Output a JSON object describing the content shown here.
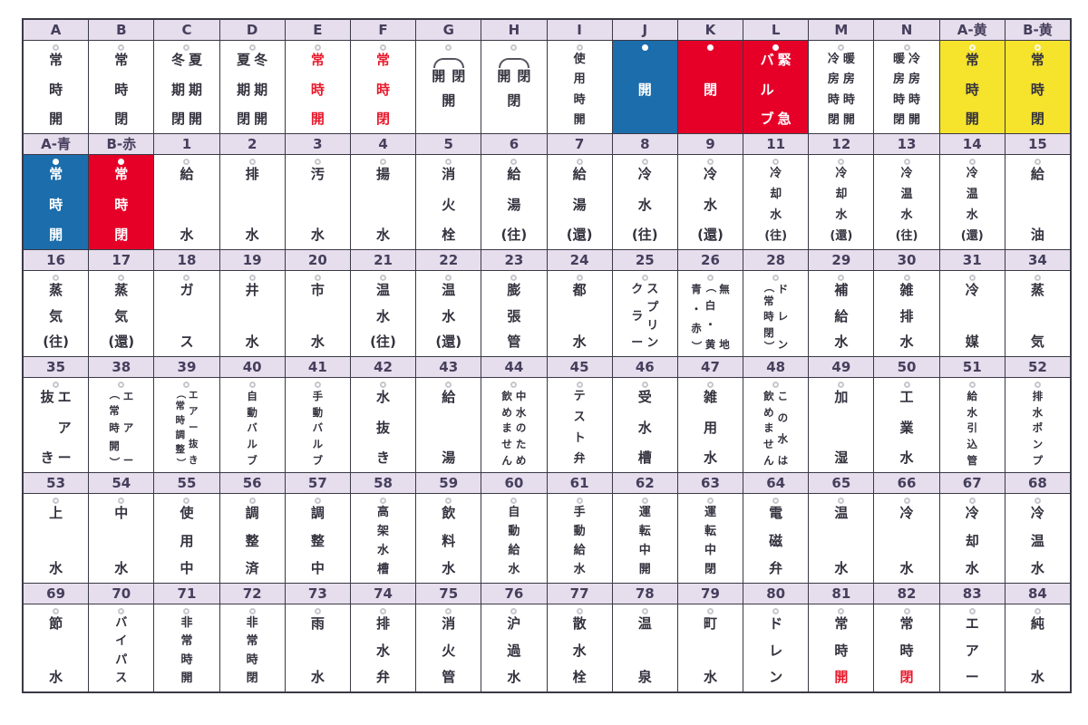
{
  "title": "valve-tag-chart",
  "colors": {
    "header_bg": "#e6dded",
    "header_text": "#463f5c",
    "border": "#3a3946",
    "tag_text": "#33323e",
    "blue_tag": "#1b6dab",
    "red_tag": "#e60028",
    "yellow_tag": "#f6e32c",
    "red_text": "#e8192c",
    "white": "#ffffff"
  },
  "table": {
    "columns": 16,
    "rows": [
      {
        "kind": "header",
        "cells": [
          "A",
          "B",
          "C",
          "D",
          "E",
          "F",
          "G",
          "H",
          "I",
          "J",
          "K",
          "L",
          "M",
          "N",
          "A-黄",
          "B-黄"
        ]
      },
      {
        "kind": "tags",
        "cells": [
          {
            "lines": [
              "常時開"
            ]
          },
          {
            "lines": [
              "常時閉"
            ]
          },
          {
            "lines": [
              "夏期開",
              "冬期閉"
            ]
          },
          {
            "lines": [
              "冬期開",
              "夏期閉"
            ]
          },
          {
            "lines": [
              "常時開"
            ],
            "fg": "red"
          },
          {
            "lines": [
              "常時閉"
            ],
            "fg": "red"
          },
          {
            "arc": {
              "pair": "開閉",
              "below": "開"
            }
          },
          {
            "arc": {
              "pair": "開閉",
              "below": "閉"
            }
          },
          {
            "lines": [
              "使用時開"
            ]
          },
          {
            "lines": [
              "開"
            ],
            "bg": "blue"
          },
          {
            "lines": [
              "閉"
            ],
            "bg": "red"
          },
          {
            "lines": [
              "緊急",
              "バルブ"
            ],
            "bg": "red"
          },
          {
            "lines": [
              "暖房時開",
              "冷房時閉"
            ]
          },
          {
            "lines": [
              "冷房時開",
              "暖房時閉"
            ]
          },
          {
            "lines": [
              "常時開"
            ],
            "bg": "yellow"
          },
          {
            "lines": [
              "常時閉"
            ],
            "bg": "yellow"
          }
        ]
      },
      {
        "kind": "header",
        "cells": [
          "A-青",
          "B-赤",
          "1",
          "2",
          "3",
          "4",
          "5",
          "6",
          "7",
          "8",
          "9",
          "11",
          "12",
          "13",
          "14",
          "15"
        ]
      },
      {
        "kind": "tags",
        "cells": [
          {
            "lines": [
              "常時開"
            ],
            "bg": "blue"
          },
          {
            "lines": [
              "常時閉"
            ],
            "bg": "red"
          },
          {
            "lines": [
              "給水"
            ]
          },
          {
            "lines": [
              "排水"
            ]
          },
          {
            "lines": [
              "汚水"
            ]
          },
          {
            "lines": [
              "揚水"
            ]
          },
          {
            "lines": [
              "消火栓"
            ]
          },
          {
            "lines": [
              "給湯(往)"
            ]
          },
          {
            "lines": [
              "給湯(還)"
            ]
          },
          {
            "lines": [
              "冷水(往)"
            ]
          },
          {
            "lines": [
              "冷水(還)"
            ]
          },
          {
            "lines": [
              "冷却水(往)"
            ]
          },
          {
            "lines": [
              "冷却水(還)"
            ]
          },
          {
            "lines": [
              "冷温水(往)"
            ]
          },
          {
            "lines": [
              "冷温水(還)"
            ]
          },
          {
            "lines": [
              "給油"
            ]
          }
        ]
      },
      {
        "kind": "header",
        "cells": [
          "16",
          "17",
          "18",
          "19",
          "20",
          "21",
          "22",
          "23",
          "24",
          "25",
          "26",
          "28",
          "29",
          "30",
          "31",
          "34"
        ]
      },
      {
        "kind": "tags",
        "cells": [
          {
            "lines": [
              "蒸気(往)"
            ]
          },
          {
            "lines": [
              "蒸気(還)"
            ]
          },
          {
            "lines": [
              "ガス"
            ]
          },
          {
            "lines": [
              "井水"
            ]
          },
          {
            "lines": [
              "市水"
            ]
          },
          {
            "lines": [
              "温水(往)"
            ]
          },
          {
            "lines": [
              "温水(還)"
            ]
          },
          {
            "lines": [
              "膨張管"
            ]
          },
          {
            "lines": [
              "都水"
            ]
          },
          {
            "lines": [
              "スプリン",
              "クラー"
            ]
          },
          {
            "lines": [
              "無地",
              "（白・黄",
              "青・赤）"
            ]
          },
          {
            "lines": [
              "ドレン",
              "（常時閉）"
            ]
          },
          {
            "lines": [
              "補給水"
            ]
          },
          {
            "lines": [
              "雑排水"
            ]
          },
          {
            "lines": [
              "冷媒"
            ]
          },
          {
            "lines": [
              "蒸気"
            ]
          }
        ]
      },
      {
        "kind": "header",
        "cells": [
          "35",
          "38",
          "39",
          "40",
          "41",
          "42",
          "43",
          "44",
          "45",
          "46",
          "47",
          "48",
          "49",
          "50",
          "51",
          "52"
        ]
      },
      {
        "kind": "tags",
        "cells": [
          {
            "lines": [
              "エアー",
              "抜き"
            ]
          },
          {
            "lines": [
              "エアー",
              "（常時開）"
            ]
          },
          {
            "lines": [
              "エアー抜き",
              "（常時調整）"
            ]
          },
          {
            "lines": [
              "自動バルブ"
            ]
          },
          {
            "lines": [
              "手動バルブ"
            ]
          },
          {
            "lines": [
              "水抜き"
            ]
          },
          {
            "lines": [
              "給湯"
            ]
          },
          {
            "lines": [
              "中水のため",
              "飲めません"
            ]
          },
          {
            "lines": [
              "テスト弁"
            ]
          },
          {
            "lines": [
              "受水槽"
            ]
          },
          {
            "lines": [
              "雑用水"
            ]
          },
          {
            "lines": [
              "この水は",
              "飲めません"
            ]
          },
          {
            "lines": [
              "加湿"
            ]
          },
          {
            "lines": [
              "工業水"
            ]
          },
          {
            "lines": [
              "給水引込管"
            ]
          },
          {
            "lines": [
              "排水ポンプ"
            ]
          }
        ]
      },
      {
        "kind": "header",
        "cells": [
          "53",
          "54",
          "55",
          "56",
          "57",
          "58",
          "59",
          "60",
          "61",
          "62",
          "63",
          "64",
          "65",
          "66",
          "67",
          "68"
        ]
      },
      {
        "kind": "tags",
        "cells": [
          {
            "lines": [
              "上水"
            ]
          },
          {
            "lines": [
              "中水"
            ]
          },
          {
            "lines": [
              "使用中"
            ]
          },
          {
            "lines": [
              "調整済"
            ]
          },
          {
            "lines": [
              "調整中"
            ]
          },
          {
            "lines": [
              "高架水槽"
            ]
          },
          {
            "lines": [
              "飲料水"
            ]
          },
          {
            "lines": [
              "自動給水"
            ]
          },
          {
            "lines": [
              "手動給水"
            ]
          },
          {
            "lines": [
              "運転中開"
            ]
          },
          {
            "lines": [
              "運転中閉"
            ]
          },
          {
            "lines": [
              "電磁弁"
            ]
          },
          {
            "lines": [
              "温水"
            ]
          },
          {
            "lines": [
              "冷水"
            ]
          },
          {
            "lines": [
              "冷却水"
            ]
          },
          {
            "lines": [
              "冷温水"
            ]
          }
        ]
      },
      {
        "kind": "header",
        "cells": [
          "69",
          "70",
          "71",
          "72",
          "73",
          "74",
          "75",
          "76",
          "77",
          "78",
          "79",
          "80",
          "81",
          "82",
          "83",
          "84"
        ]
      },
      {
        "kind": "tags",
        "cells": [
          {
            "lines": [
              "節水"
            ]
          },
          {
            "lines": [
              "バイパス"
            ]
          },
          {
            "lines": [
              "非常時開"
            ]
          },
          {
            "lines": [
              "非常時閉"
            ]
          },
          {
            "lines": [
              "雨水"
            ]
          },
          {
            "lines": [
              "排水弁"
            ]
          },
          {
            "lines": [
              "消火管"
            ]
          },
          {
            "lines": [
              "沪過水"
            ]
          },
          {
            "lines": [
              "散水栓"
            ]
          },
          {
            "lines": [
              "温泉"
            ]
          },
          {
            "lines": [
              "町水"
            ]
          },
          {
            "lines": [
              "ドレン"
            ]
          },
          {
            "lines": [
              "常時開"
            ],
            "red_last": true
          },
          {
            "lines": [
              "常時閉"
            ],
            "red_last": true
          },
          {
            "lines": [
              "エアー"
            ]
          },
          {
            "lines": [
              "純水"
            ]
          }
        ]
      }
    ]
  }
}
